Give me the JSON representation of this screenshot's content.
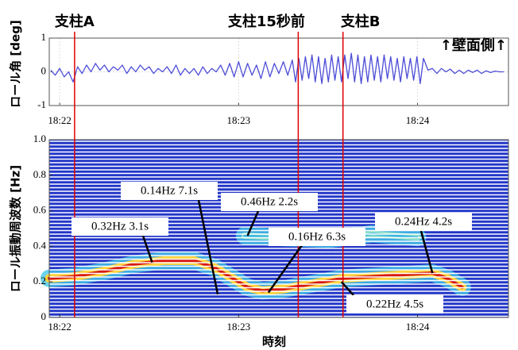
{
  "chart_data": [
    {
      "type": "line",
      "y_label": "ロール角 [deg]",
      "annotation": "↑壁面側↑",
      "grid": true,
      "xlim": [
        -3.5,
        150.5
      ],
      "xticks": [
        {
          "value": 0,
          "label": "18:22"
        },
        {
          "value": 60,
          "label": "18:23"
        },
        {
          "value": 120,
          "label": "18:24"
        }
      ],
      "ylim": [
        -1,
        1
      ],
      "yticks": [
        -1,
        0,
        1
      ],
      "events": [
        {
          "label": "支柱A",
          "x": 5
        },
        {
          "label": "支柱15秒前",
          "x": 80
        },
        {
          "label": "支柱B",
          "x": 95
        }
      ],
      "series": [
        {
          "color": "#4d4dd8",
          "x": [
            -3,
            -1.5,
            0,
            1.5,
            3,
            4.5,
            6,
            7.5,
            9,
            10.5,
            12,
            13.5,
            15,
            16.5,
            18,
            19.5,
            21,
            22.5,
            24,
            25.5,
            27,
            28.5,
            30,
            31.5,
            33,
            34.5,
            36,
            37.5,
            39,
            40.5,
            42,
            43.5,
            45,
            46.5,
            48,
            49.5,
            51,
            52.5,
            54,
            55.5,
            57,
            58.5,
            60,
            61.5,
            63,
            64.5,
            66,
            67.5,
            69,
            70.5,
            72,
            73.5,
            75,
            76.5,
            78,
            79.1,
            80.2,
            81.3,
            82.4,
            83.5,
            84.6,
            85.7,
            86.8,
            87.9,
            89,
            90.1,
            91.2,
            92.3,
            93.4,
            94.5,
            95.6,
            96.7,
            97.8,
            98.9,
            100,
            101.1,
            102.2,
            103.3,
            104.4,
            105.5,
            106.6,
            107.7,
            108.8,
            109.9,
            111,
            112.1,
            113.2,
            114.3,
            115.4,
            116.5,
            117.6,
            118.7,
            119.8,
            120.9,
            122,
            123.5,
            125,
            126.5,
            128,
            129.5,
            131,
            132.5,
            134,
            135.5,
            137,
            138.5,
            140,
            141.5,
            143,
            144.5,
            146,
            147.5,
            149
          ],
          "values": [
            0.05,
            -0.1,
            0.1,
            -0.15,
            0.0,
            -0.3,
            0.15,
            -0.05,
            0.2,
            0.0,
            0.25,
            0.05,
            0.2,
            0.0,
            0.15,
            0.05,
            0.2,
            -0.05,
            0.15,
            0.0,
            0.2,
            0.05,
            0.15,
            -0.05,
            0.1,
            0.0,
            0.15,
            -0.05,
            0.2,
            -0.1,
            0.1,
            -0.05,
            0.1,
            -0.1,
            0.15,
            -0.05,
            0.1,
            0.0,
            0.2,
            -0.1,
            0.25,
            -0.15,
            0.3,
            -0.15,
            0.25,
            -0.1,
            0.2,
            -0.2,
            0.3,
            -0.15,
            0.25,
            -0.05,
            0.3,
            -0.1,
            0.35,
            -0.3,
            0.4,
            -0.25,
            0.45,
            -0.2,
            0.5,
            -0.3,
            0.45,
            -0.35,
            0.4,
            -0.3,
            0.5,
            -0.25,
            0.45,
            -0.3,
            0.5,
            -0.2,
            0.55,
            -0.3,
            0.5,
            -0.35,
            0.45,
            -0.3,
            0.5,
            -0.25,
            0.45,
            -0.3,
            0.5,
            -0.2,
            0.45,
            -0.25,
            0.4,
            -0.3,
            0.45,
            -0.2,
            0.4,
            -0.25,
            0.45,
            -0.35,
            0.4,
            0.05,
            0.1,
            -0.05,
            0.1,
            0.0,
            0.08,
            -0.05,
            0.05,
            -0.05,
            0.05,
            -0.02,
            0.05,
            -0.05,
            0.03,
            -0.02,
            0.02,
            0.0,
            0.0
          ]
        }
      ]
    },
    {
      "type": "spectrogram",
      "y_label": "ロール振動周波数 [Hz]",
      "x_label": "時刻",
      "xlim": [
        -3.5,
        150.5
      ],
      "xticks": [
        {
          "value": 0,
          "label": "18:22"
        },
        {
          "value": 60,
          "label": "18:23"
        },
        {
          "value": 120,
          "label": "18:24"
        }
      ],
      "ylim": [
        0,
        1
      ],
      "yticks": [
        0,
        0.2,
        0.4,
        0.6,
        0.8,
        {
          "value": 1,
          "label": "1.0"
        }
      ],
      "series": [
        {
          "color": "#d81a10",
          "x": [
            -3.5,
            5,
            15,
            25,
            35,
            45,
            52,
            58,
            63,
            68,
            75,
            85,
            95,
            105,
            115,
            125,
            130,
            135
          ],
          "values": [
            0.22,
            0.23,
            0.26,
            0.3,
            0.32,
            0.32,
            0.28,
            0.22,
            0.17,
            0.15,
            0.16,
            0.19,
            0.22,
            0.23,
            0.24,
            0.25,
            0.22,
            0.17
          ]
        },
        {
          "color": "#3ab7e0",
          "x": [
            62,
            75,
            90,
            105,
            120
          ],
          "values": [
            0.46,
            0.45,
            0.44,
            0.47,
            0.45
          ]
        }
      ],
      "annotations": [
        {
          "label": "0.32Hz  3.1s",
          "x": 31,
          "y": 0.31
        },
        {
          "label": "0.14Hz  7.1s",
          "x": 53,
          "y": 0.13
        },
        {
          "label": "0.46Hz  2.2s",
          "x": 63,
          "y": 0.46
        },
        {
          "label": "0.16Hz  6.3s",
          "x": 70,
          "y": 0.14
        },
        {
          "label": "0.24Hz  4.2s",
          "x": 125,
          "y": 0.25
        },
        {
          "label": "0.22Hz  4.5s",
          "x": 94.5,
          "y": 0.2
        }
      ]
    }
  ]
}
